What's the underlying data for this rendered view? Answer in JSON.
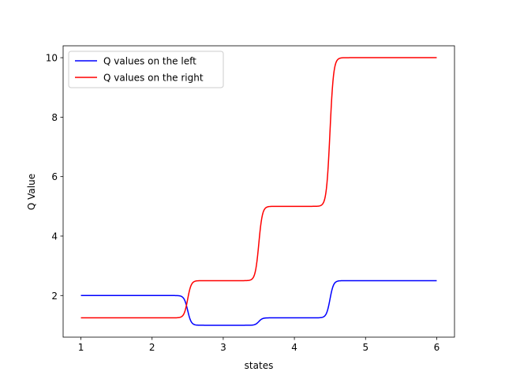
{
  "chart_data": {
    "type": "line",
    "title": "",
    "xlabel": "states",
    "ylabel": "Q Value",
    "xlim": [
      0.75,
      6.25
    ],
    "ylim": [
      0.6,
      10.4
    ],
    "xticks": [
      1,
      2,
      3,
      4,
      5,
      6
    ],
    "yticks": [
      2,
      4,
      6,
      8,
      10
    ],
    "grid": false,
    "legend_position": "top-left",
    "series": [
      {
        "name": "Q values on the left",
        "color": "#0000ff",
        "levels": [
          {
            "x_start": 1.0,
            "x_end": 2.5,
            "y": 2.0
          },
          {
            "x_start": 2.5,
            "x_end": 3.5,
            "y": 1.0
          },
          {
            "x_start": 3.5,
            "x_end": 4.5,
            "y": 1.25
          },
          {
            "x_start": 4.5,
            "x_end": 6.0,
            "y": 2.5
          }
        ]
      },
      {
        "name": "Q values on the right",
        "color": "#ff0000",
        "levels": [
          {
            "x_start": 1.0,
            "x_end": 2.5,
            "y": 1.25
          },
          {
            "x_start": 2.5,
            "x_end": 3.5,
            "y": 2.5
          },
          {
            "x_start": 3.5,
            "x_end": 4.5,
            "y": 5.0
          },
          {
            "x_start": 4.5,
            "x_end": 6.0,
            "y": 10.0
          }
        ]
      }
    ]
  }
}
